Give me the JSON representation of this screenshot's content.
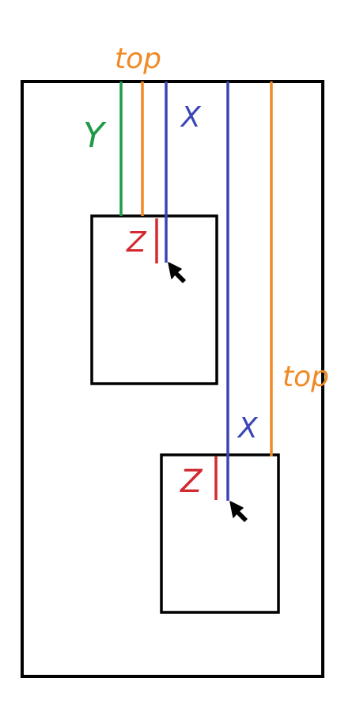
{
  "labels": {
    "top_upper": "top",
    "y": "Y",
    "x_upper": "X",
    "z_upper": "Z",
    "top_lower": "top",
    "x_lower": "X",
    "z_lower": "Z"
  },
  "colors": {
    "outline": "#000000",
    "top_line": "#f08a24",
    "x_line": "#3b45b5",
    "y_line": "#1f9a4a",
    "z_line": "#d32a32"
  },
  "icons": {
    "cursor": "arrow-pointer-icon"
  }
}
